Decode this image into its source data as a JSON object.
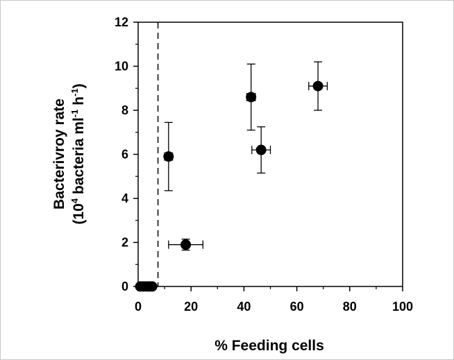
{
  "chart_data": {
    "type": "scatter",
    "title": "",
    "xlabel": "% Feeding cells",
    "ylabel": {
      "line1": "Bacterivroy rate",
      "line2_prefix": "(10",
      "line2_exp1": "4",
      "line2_mid": " bacteria ml",
      "line2_exp2": "-1",
      "line2_mid2": " h",
      "line2_exp3": "-1",
      "line2_suffix": ")"
    },
    "xlim": [
      0,
      100
    ],
    "ylim": [
      0,
      12
    ],
    "x_ticks": [
      0,
      20,
      40,
      60,
      80,
      100
    ],
    "y_ticks": [
      0,
      2,
      4,
      6,
      8,
      10,
      12
    ],
    "x_tick_labels": [
      "0",
      "20",
      "40",
      "60",
      "80",
      "100"
    ],
    "y_tick_labels": [
      "0",
      "2",
      "4",
      "6",
      "8",
      "10",
      "12"
    ],
    "grid": false,
    "threshold_line_x": 7.5,
    "points": [
      {
        "x": 0.8,
        "y": 0,
        "x_err": 0.8,
        "y_err": 0.1
      },
      {
        "x": 2.0,
        "y": 0,
        "x_err": 0.8,
        "y_err": 0.1
      },
      {
        "x": 3.2,
        "y": 0,
        "x_err": 0.8,
        "y_err": 0.1
      },
      {
        "x": 4.3,
        "y": 0,
        "x_err": 0.9,
        "y_err": 0.1
      },
      {
        "x": 5.3,
        "y": 0,
        "x_err": 0.9,
        "y_err": 0.1
      },
      {
        "x": 11.5,
        "y": 5.9,
        "x_err": 1.5,
        "y_err": 1.55
      },
      {
        "x": 18.0,
        "y": 1.9,
        "x_err": 6.5,
        "y_err": 0.25
      },
      {
        "x": 42.7,
        "y": 8.6,
        "x_err": 1.6,
        "y_err": 1.5
      },
      {
        "x": 46.5,
        "y": 6.2,
        "x_err": 3.5,
        "y_err": 1.05
      },
      {
        "x": 68.0,
        "y": 9.1,
        "x_err": 3.5,
        "y_err": 1.1
      }
    ],
    "colors": {
      "marker": "#000000",
      "axis": "#000000",
      "background": "#ffffff"
    }
  }
}
